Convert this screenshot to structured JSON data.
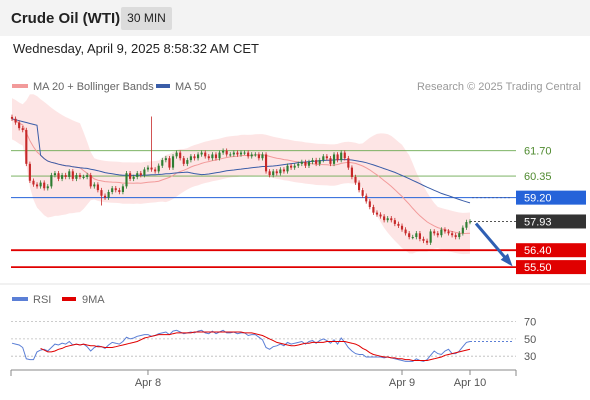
{
  "header": {
    "title": "Crude Oil (WTI)",
    "interval": "30 MIN"
  },
  "timestamp": "Wednesday, April 9, 2025 8:58:32 AM CET",
  "legend": {
    "ma20": "MA 20 + Bollinger Bands",
    "ma50": "MA 50",
    "credit": "Research © 2025 Trading Central"
  },
  "rsi_legend": {
    "rsi": "RSI",
    "ma9": "9MA"
  },
  "colors": {
    "ma20": "#f29a9a",
    "ma50": "#3a5da8",
    "band": "#fde2e2",
    "up": "#2e7d32",
    "down": "#c62828",
    "resistance": "#6aa84f",
    "pivot": "#2563d9",
    "support": "#e00000",
    "current": "#333333",
    "rsi": "#5b7fd6",
    "rsi_ma": "#e00000"
  },
  "chart_data": [
    {
      "type": "candlestick",
      "title": "Crude Oil (WTI)",
      "interval": "30 MIN",
      "ylim": [
        54.6,
        64.4
      ],
      "x_labels": [
        "Apr 8",
        "Apr 9",
        "Apr 10"
      ],
      "levels": [
        {
          "label": "61.70",
          "value": 61.7,
          "kind": "resistance"
        },
        {
          "label": "60.35",
          "value": 60.35,
          "kind": "resistance"
        },
        {
          "label": "59.20",
          "value": 59.2,
          "kind": "pivot"
        },
        {
          "label": "57.93",
          "value": 57.93,
          "kind": "current"
        },
        {
          "label": "56.40",
          "value": 56.4,
          "kind": "support"
        },
        {
          "label": "55.50",
          "value": 55.5,
          "kind": "support"
        }
      ],
      "closes": [
        63.4,
        63.2,
        62.9,
        62.8,
        61.0,
        60.1,
        59.9,
        59.8,
        60.0,
        59.7,
        59.8,
        60.4,
        60.5,
        60.2,
        60.4,
        60.3,
        60.6,
        60.2,
        60.4,
        60.3,
        60.3,
        60.4,
        59.8,
        59.9,
        59.6,
        59.3,
        59.2,
        59.5,
        59.7,
        59.6,
        59.5,
        59.8,
        60.5,
        60.2,
        60.3,
        60.5,
        60.4,
        60.7,
        60.8,
        60.7,
        60.6,
        60.9,
        61.2,
        61.3,
        60.8,
        61.4,
        61.6,
        61.3,
        61.0,
        61.2,
        61.4,
        61.3,
        61.5,
        61.6,
        61.4,
        61.3,
        61.5,
        61.3,
        61.6,
        61.7,
        61.5,
        61.5,
        61.6,
        61.5,
        61.6,
        61.6,
        61.4,
        61.5,
        61.5,
        61.3,
        61.5,
        60.6,
        60.4,
        60.6,
        60.5,
        60.7,
        60.6,
        60.9,
        60.8,
        60.9,
        61.0,
        61.1,
        60.9,
        61.1,
        61.2,
        61.0,
        61.2,
        61.4,
        61.3,
        61.0,
        61.5,
        61.2,
        61.6,
        61.3,
        60.8,
        60.3,
        60.0,
        59.6,
        59.3,
        59.0,
        58.7,
        58.4,
        58.3,
        58.2,
        58.0,
        58.1,
        58.0,
        57.8,
        57.7,
        57.5,
        57.3,
        57.1,
        57.1,
        57.3,
        57.0,
        56.9,
        56.8,
        57.4,
        57.3,
        57.2,
        57.5,
        57.4,
        57.3,
        57.2,
        57.1,
        57.3,
        57.6,
        57.9,
        57.93
      ]
    },
    {
      "type": "line",
      "title": "RSI",
      "ylim": [
        14,
        80
      ],
      "y_ticks": [
        70,
        50,
        30
      ],
      "series": [
        {
          "name": "RSI",
          "values": [
            45,
            44,
            43,
            40,
            27,
            26,
            26,
            35,
            37,
            38,
            36,
            40,
            44,
            43,
            45,
            44,
            47,
            43,
            44,
            43,
            44,
            41,
            36,
            40,
            42,
            41,
            39,
            43,
            46,
            45,
            44,
            47,
            52,
            50,
            51,
            53,
            54,
            55,
            55,
            53,
            54,
            56,
            57,
            58,
            55,
            59,
            60,
            58,
            56,
            57,
            58,
            57,
            59,
            60,
            57,
            56,
            59,
            56,
            58,
            60,
            57,
            57,
            58,
            56,
            57,
            57,
            54,
            55,
            55,
            52,
            49,
            40,
            38,
            41,
            42,
            44,
            42,
            46,
            44,
            45,
            46,
            47,
            44,
            47,
            48,
            45,
            48,
            50,
            48,
            45,
            49,
            44,
            51,
            46,
            40,
            36,
            33,
            32,
            32,
            29,
            29,
            29,
            29,
            29,
            28,
            29,
            28,
            27,
            26,
            25,
            24,
            24,
            24,
            27,
            25,
            24,
            26,
            31,
            36,
            33,
            32,
            36,
            38,
            33,
            33,
            36,
            41,
            46,
            47
          ]
        },
        {
          "name": "9MA",
          "values": [
            null,
            null,
            null,
            null,
            null,
            null,
            null,
            null,
            39,
            37,
            35,
            35,
            36,
            38,
            39,
            41,
            42,
            43,
            44,
            43,
            44,
            43,
            42,
            42,
            41,
            41,
            40,
            40,
            40,
            41,
            42,
            43,
            44,
            45,
            46,
            47,
            49,
            51,
            52,
            53,
            54,
            55,
            55,
            55,
            55,
            56,
            57,
            57,
            57,
            57,
            57,
            58,
            58,
            58,
            58,
            58,
            58,
            58,
            58,
            58,
            58,
            58,
            58,
            58,
            58,
            57,
            57,
            57,
            56,
            55,
            54,
            52,
            50,
            48,
            46,
            45,
            44,
            43,
            42,
            42,
            43,
            44,
            45,
            45,
            46,
            46,
            46,
            46,
            47,
            47,
            47,
            47,
            47,
            47,
            46,
            45,
            44,
            42,
            39,
            37,
            34,
            32,
            31,
            30,
            29,
            29,
            28,
            28,
            27,
            27,
            26,
            26,
            25,
            25,
            25,
            25,
            25,
            26,
            27,
            28,
            29,
            31,
            32,
            33,
            34,
            35,
            36,
            37,
            38
          ]
        }
      ]
    }
  ]
}
